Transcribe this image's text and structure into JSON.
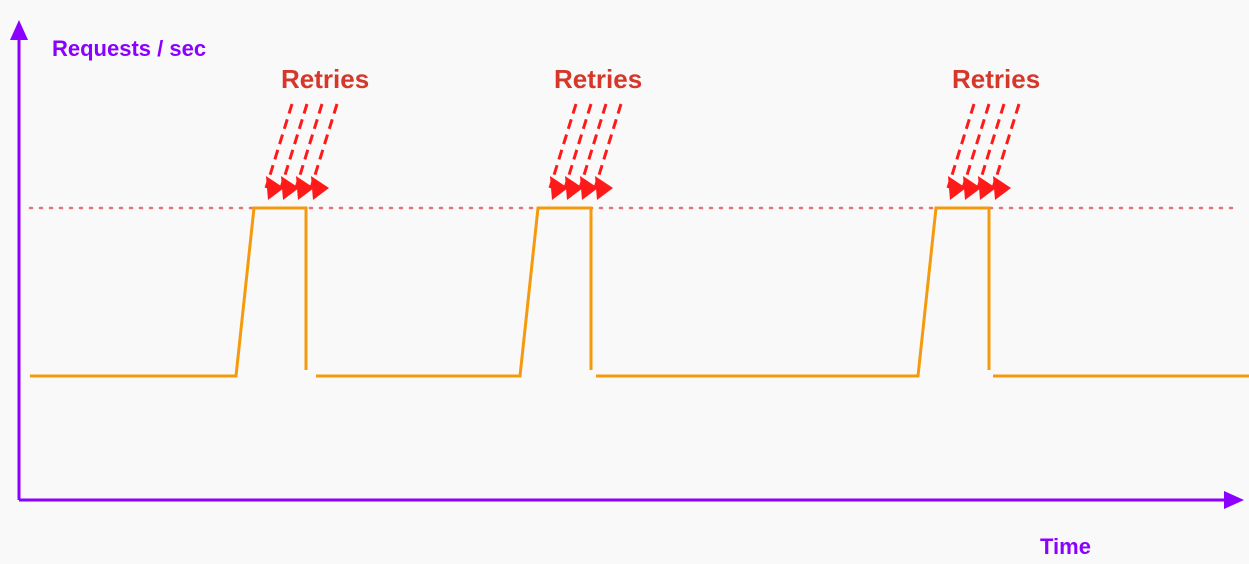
{
  "y_axis_label": "Requests / sec",
  "x_axis_label": "Time",
  "annotation_label": "Retries",
  "colors": {
    "axis": "#8B00FF",
    "traffic_line": "#F59A0C",
    "capacity_line": "#E57373",
    "retry_arrows": "#FF1A1A",
    "retry_text": "#D5382A",
    "background": "#F9F9F9"
  },
  "retry_bursts": [
    {
      "label": "Retries"
    },
    {
      "label": "Retries"
    },
    {
      "label": "Retries"
    }
  ]
}
